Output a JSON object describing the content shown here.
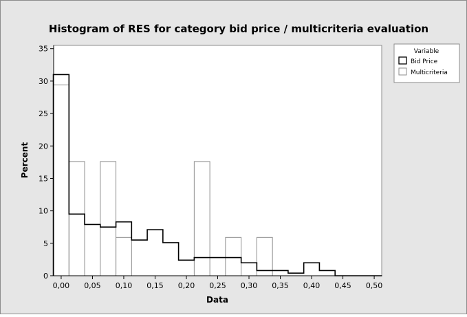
{
  "chart_data": {
    "type": "bar",
    "title": "Histogram of RES for category bid price / multicriteria evaluation",
    "xlabel": "Data",
    "ylabel": "Percent",
    "xlim": [
      -0.012,
      0.512
    ],
    "ylim": [
      0,
      35.5
    ],
    "x_ticks": [
      "0,00",
      "0,05",
      "0,10",
      "0,15",
      "0,20",
      "0,25",
      "0,30",
      "0,35",
      "0,40",
      "0,45",
      "0,50"
    ],
    "x_tick_values": [
      0,
      0.05,
      0.1,
      0.15,
      0.2,
      0.25,
      0.3,
      0.35,
      0.4,
      0.45,
      0.5
    ],
    "y_ticks": [
      0,
      5,
      10,
      15,
      20,
      25,
      30,
      35
    ],
    "grid": false,
    "legend": {
      "title": "Variable",
      "position": "top-right"
    },
    "series": [
      {
        "name": "Bid Price",
        "style": "step outline",
        "color": "#000000",
        "bin_edges": [
          -0.0125,
          0.0125,
          0.0375,
          0.0625,
          0.0875,
          0.1125,
          0.1375,
          0.1625,
          0.1875,
          0.2125,
          0.2375,
          0.2625,
          0.2875,
          0.3125,
          0.3375,
          0.3625,
          0.3875,
          0.4125,
          0.4375,
          0.4625,
          0.4875,
          0.5125
        ],
        "values": [
          31.0,
          9.5,
          7.9,
          7.5,
          8.3,
          5.5,
          7.1,
          5.1,
          2.4,
          2.8,
          2.8,
          2.8,
          2.0,
          0.8,
          0.8,
          0.4,
          2.0,
          0.8,
          0,
          0,
          0
        ]
      },
      {
        "name": "Multicriteria",
        "style": "hollow bars",
        "color": "#8c8c8c",
        "bin_edges": [
          -0.0125,
          0.0125,
          0.0375,
          0.0625,
          0.0875,
          0.1125,
          0.1375,
          0.1625,
          0.1875,
          0.2125,
          0.2375,
          0.2625,
          0.2875,
          0.3125,
          0.3375,
          0.3625
        ],
        "values": [
          29.4,
          17.6,
          0,
          17.6,
          5.9,
          0,
          0,
          0,
          0,
          17.6,
          0,
          5.9,
          0,
          5.9,
          0
        ]
      }
    ]
  },
  "colors": {
    "outer_background": "#e6e6e6",
    "plot_background": "#ffffff",
    "border": "#8c8c8c",
    "axis": "#000000"
  }
}
